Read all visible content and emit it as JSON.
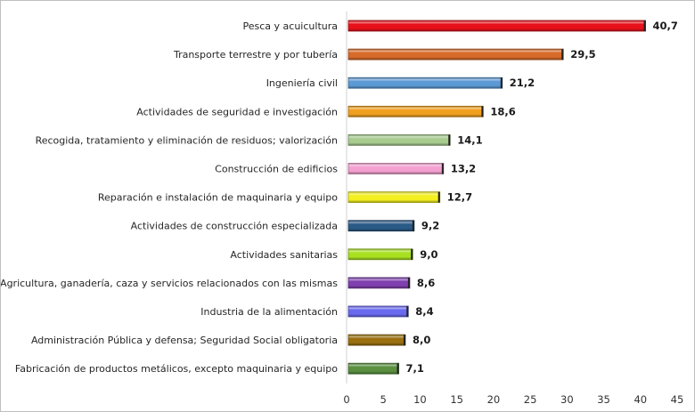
{
  "chart_data": {
    "type": "bar",
    "orientation": "horizontal",
    "title": "",
    "xlabel": "",
    "ylabel": "",
    "xlim": [
      0,
      45
    ],
    "xticks": [
      0,
      5,
      10,
      15,
      20,
      25,
      30,
      35,
      40,
      45
    ],
    "grid": false,
    "legend": "none",
    "categories": [
      "Pesca y acuicultura",
      "Transporte terrestre y por tubería",
      "Ingeniería civil",
      "Actividades de seguridad e investigación",
      "Recogida, tratamiento y eliminación de residuos; valorización",
      "Construcción de edificios",
      "Reparación e instalación de maquinaria y equipo",
      "Actividades de construcción especializada",
      "Actividades sanitarias",
      "Agricultura, ganadería, caza y servicios relacionados con las mismas",
      "Industria de la alimentación",
      "Administración Pública y defensa; Seguridad Social obligatoria",
      "Fabricación de productos metálicos, excepto maquinaria y equipo"
    ],
    "values": [
      40.7,
      29.5,
      21.2,
      18.6,
      14.1,
      13.2,
      12.7,
      9.2,
      9.0,
      8.6,
      8.4,
      8.0,
      7.1
    ],
    "value_labels": [
      "40,7",
      "29,5",
      "21,2",
      "18,6",
      "14,1",
      "13,2",
      "12,7",
      "9,2",
      "9,0",
      "8,6",
      "8,4",
      "8,0",
      "7,1"
    ],
    "colors": [
      "#e8101a",
      "#d86a2a",
      "#5c9ad6",
      "#f0a020",
      "#a8cc90",
      "#f4a0d0",
      "#f4f020",
      "#2a5a86",
      "#a8e020",
      "#8040b0",
      "#6a6af0",
      "#9a7010",
      "#5a9040"
    ]
  }
}
